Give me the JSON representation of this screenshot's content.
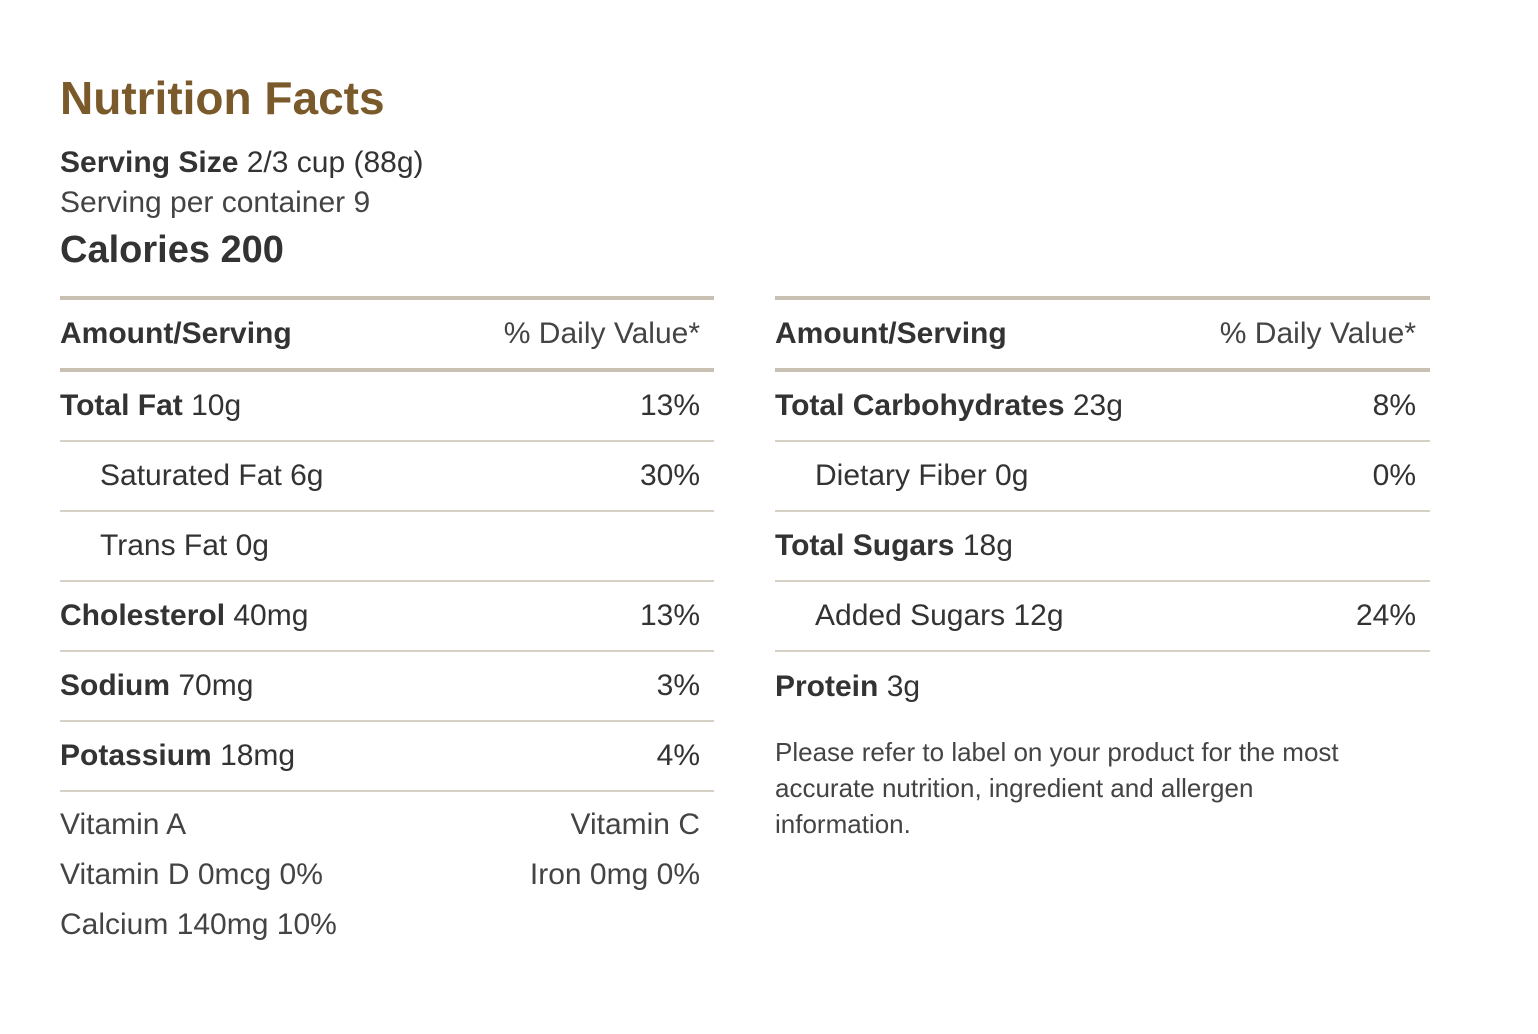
{
  "title": "Nutrition Facts",
  "serving": {
    "size_label": "Serving Size",
    "size_value": "2/3 cup (88g)",
    "per_container": "Serving per container 9"
  },
  "calories": "Calories 200",
  "left": {
    "header": {
      "amount": "Amount/Serving",
      "daily": "% Daily Value*"
    },
    "rows": [
      {
        "label": "Total Fat",
        "value": "10g",
        "pct": "13%"
      },
      {
        "label": "Saturated Fat 6g",
        "value": "",
        "pct": "30%"
      },
      {
        "label": "Trans Fat 0g",
        "value": "",
        "pct": ""
      },
      {
        "label": "Cholesterol",
        "value": "40mg",
        "pct": "13%"
      },
      {
        "label": "Sodium",
        "value": "70mg",
        "pct": "3%"
      },
      {
        "label": "Potassium",
        "value": "18mg",
        "pct": "4%"
      }
    ],
    "vitamins": {
      "vitamin_a": "Vitamin A",
      "vitamin_c": "Vitamin C",
      "vitamin_d": "Vitamin D 0mcg 0%",
      "iron": "Iron 0mg 0%",
      "calcium": "Calcium 140mg 10%"
    }
  },
  "right": {
    "header": {
      "amount": "Amount/Serving",
      "daily": "% Daily Value*"
    },
    "rows": [
      {
        "label": "Total Carbohydrates",
        "value": "23g",
        "pct": "8%"
      },
      {
        "label": "Dietary Fiber 0g",
        "value": "",
        "pct": "0%"
      },
      {
        "label": "Total Sugars",
        "value": "18g",
        "pct": ""
      },
      {
        "label": "Added Sugars 12g",
        "value": "",
        "pct": "24%"
      },
      {
        "label": "Protein",
        "value": "3g",
        "pct": ""
      }
    ],
    "note": "Please refer to label on your product for the most accurate nutrition, ingredient and allergen information."
  }
}
